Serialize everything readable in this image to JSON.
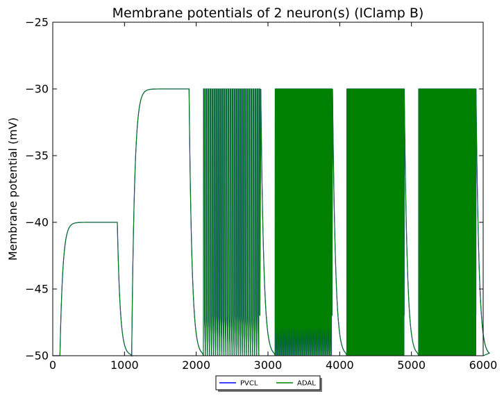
{
  "chart_data": {
    "type": "line",
    "title": "Membrane potentials of 2 neuron(s) (IClamp B)",
    "xlabel": "",
    "ylabel": "Membrane potential (mV)",
    "xlim": [
      0,
      6000
    ],
    "ylim": [
      -50,
      -25
    ],
    "xticks": [
      0,
      1000,
      2000,
      3000,
      4000,
      5000,
      6000
    ],
    "yticks": [
      -25,
      -30,
      -35,
      -40,
      -45,
      -50
    ],
    "xtick_labels": [
      "0",
      "1000",
      "2000",
      "3000",
      "4000",
      "5000",
      "6000"
    ],
    "ytick_labels": [
      "−25",
      "−30",
      "−35",
      "−40",
      "−45",
      "−50"
    ],
    "grid": false,
    "legend": {
      "placement": "bottom-center, below axes",
      "columns": 2
    },
    "series": [
      {
        "name": "PVCL",
        "color": "#0000ff"
      },
      {
        "name": "ADAL",
        "color": "#008000"
      }
    ],
    "segments": [
      {
        "start": 100,
        "end": 900,
        "plateau": -40,
        "spiking": false
      },
      {
        "start": 1100,
        "end": 1900,
        "plateau": -30,
        "spiking": false
      },
      {
        "start": 2100,
        "end": 2900,
        "peak": -30,
        "trough": -50,
        "spiking": true,
        "spike_count": 28
      },
      {
        "start": 3100,
        "end": 3900,
        "peak": -30,
        "trough": -50,
        "spiking": true,
        "spike_count": 55
      },
      {
        "start": 4100,
        "end": 4900,
        "peak": -30,
        "trough": -50,
        "spiking": true,
        "spike_count": 200
      },
      {
        "start": 5100,
        "end": 5900,
        "peak": -30,
        "trough": -50,
        "spiking": true,
        "spike_count": 260
      }
    ],
    "baseline": -50
  }
}
